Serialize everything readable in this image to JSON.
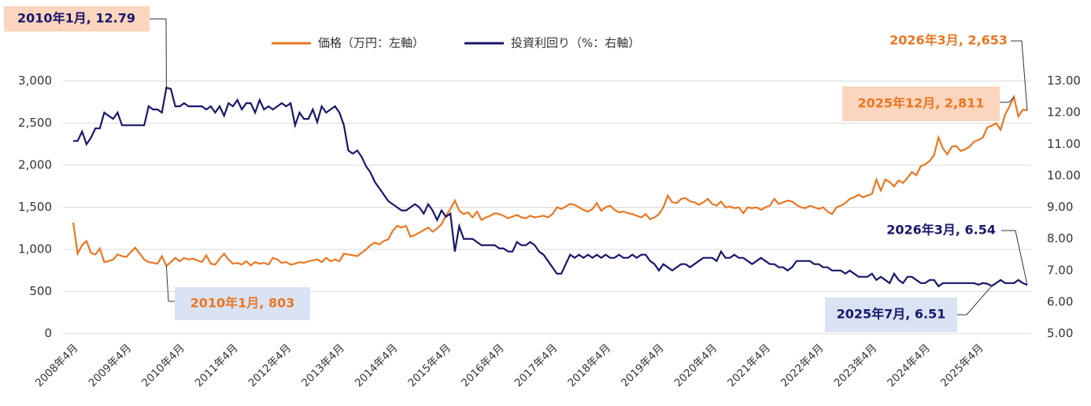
{
  "chart_data": {
    "type": "line",
    "legend": "top",
    "ylim": [
      0,
      3000
    ],
    "yticks": [
      0,
      500,
      {
        "value": 1000,
        "label": "1,000"
      },
      {
        "value": 1500,
        "label": "1,500"
      },
      {
        "value": 2000,
        "label": "2,000"
      },
      {
        "value": 2500,
        "label": "2,500"
      },
      {
        "value": 3000,
        "label": "3,000"
      }
    ],
    "y2lim": [
      5,
      13
    ],
    "y2ticks": [
      {
        "value": 5,
        "label": "5.00"
      },
      {
        "value": 6,
        "label": "6.00"
      },
      {
        "value": 7,
        "label": "7.00"
      },
      {
        "value": 8,
        "label": "8.00"
      },
      {
        "value": 9,
        "label": "9.00"
      },
      {
        "value": 10,
        "label": "10.00"
      },
      {
        "value": 11,
        "label": "11.00"
      },
      {
        "value": 12,
        "label": "12.00"
      },
      {
        "value": 13,
        "label": "13.00"
      }
    ],
    "grid": true,
    "categories": [
      "2008年4月",
      null,
      null,
      null,
      null,
      null,
      null,
      null,
      null,
      null,
      null,
      null,
      "2009年4月",
      null,
      null,
      null,
      null,
      null,
      null,
      null,
      null,
      null,
      null,
      null,
      "2010年4月",
      null,
      null,
      null,
      null,
      null,
      null,
      null,
      null,
      null,
      null,
      null,
      "2011年4月",
      null,
      null,
      null,
      null,
      null,
      null,
      null,
      null,
      null,
      null,
      null,
      "2012年4月",
      null,
      null,
      null,
      null,
      null,
      null,
      null,
      null,
      null,
      null,
      null,
      "2013年4月",
      null,
      null,
      null,
      null,
      null,
      null,
      null,
      null,
      null,
      null,
      null,
      "2014年4月",
      null,
      null,
      null,
      null,
      null,
      null,
      null,
      null,
      null,
      null,
      null,
      "2015年4月",
      null,
      null,
      null,
      null,
      null,
      null,
      null,
      null,
      null,
      null,
      null,
      "2016年4月",
      null,
      null,
      null,
      null,
      null,
      null,
      null,
      null,
      null,
      null,
      null,
      "2017年4月",
      null,
      null,
      null,
      null,
      null,
      null,
      null,
      null,
      null,
      null,
      null,
      "2018年4月",
      null,
      null,
      null,
      null,
      null,
      null,
      null,
      null,
      null,
      null,
      null,
      "2019年4月",
      null,
      null,
      null,
      null,
      null,
      null,
      null,
      null,
      null,
      null,
      null,
      "2020年4月",
      null,
      null,
      null,
      null,
      null,
      null,
      null,
      null,
      null,
      null,
      null,
      "2021年4月",
      null,
      null,
      null,
      null,
      null,
      null,
      null,
      null,
      null,
      null,
      null,
      "2022年4月",
      null,
      null,
      null,
      null,
      null,
      null,
      null,
      null,
      null,
      null,
      null,
      "2023年4月",
      null,
      null,
      null,
      null,
      null,
      null,
      null,
      null,
      null,
      null,
      null,
      "2024年4月",
      null,
      null,
      null,
      null,
      null,
      null,
      null,
      null,
      null,
      null,
      null,
      "2025年4月",
      null,
      null,
      null,
      null,
      null,
      null,
      null,
      null,
      null,
      null,
      null
    ],
    "series": [
      {
        "name": "価格（万円：左軸）",
        "color": "#e87722",
        "axis": "y",
        "values": [
          1320,
          950,
          1050,
          1100,
          960,
          940,
          1010,
          850,
          860,
          880,
          940,
          920,
          910,
          970,
          1020,
          950,
          880,
          850,
          840,
          830,
          920,
          803,
          850,
          900,
          860,
          900,
          880,
          890,
          870,
          850,
          930,
          830,
          820,
          890,
          950,
          880,
          830,
          840,
          820,
          860,
          810,
          850,
          830,
          840,
          820,
          900,
          880,
          840,
          850,
          820,
          830,
          850,
          840,
          860,
          870,
          880,
          850,
          900,
          860,
          880,
          860,
          950,
          940,
          930,
          920,
          960,
          1000,
          1050,
          1080,
          1060,
          1100,
          1120,
          1220,
          1280,
          1260,
          1280,
          1150,
          1170,
          1200,
          1230,
          1260,
          1210,
          1250,
          1300,
          1400,
          1480,
          1580,
          1460,
          1420,
          1440,
          1380,
          1450,
          1350,
          1380,
          1400,
          1430,
          1420,
          1400,
          1370,
          1390,
          1410,
          1380,
          1370,
          1400,
          1380,
          1390,
          1400,
          1380,
          1420,
          1500,
          1480,
          1510,
          1540,
          1530,
          1500,
          1470,
          1450,
          1480,
          1550,
          1460,
          1500,
          1520,
          1470,
          1440,
          1450,
          1430,
          1420,
          1400,
          1380,
          1420,
          1360,
          1380,
          1420,
          1500,
          1640,
          1560,
          1550,
          1600,
          1610,
          1570,
          1560,
          1530,
          1560,
          1600,
          1540,
          1520,
          1570,
          1500,
          1510,
          1490,
          1500,
          1430,
          1500,
          1490,
          1500,
          1470,
          1500,
          1520,
          1600,
          1540,
          1560,
          1580,
          1570,
          1530,
          1500,
          1490,
          1520,
          1500,
          1480,
          1500,
          1450,
          1420,
          1500,
          1520,
          1550,
          1600,
          1620,
          1650,
          1620,
          1640,
          1660,
          1830,
          1700,
          1830,
          1800,
          1750,
          1820,
          1790,
          1850,
          1920,
          1880,
          1990,
          2010,
          2050,
          2120,
          2330,
          2200,
          2130,
          2220,
          2230,
          2170,
          2190,
          2220,
          2280,
          2300,
          2330,
          2450,
          2470,
          2500,
          2420,
          2600,
          2700,
          2811,
          2580,
          2660,
          2653
        ]
      },
      {
        "name": "投資利回り（%：右軸）",
        "color": "#17176b",
        "axis": "y2",
        "values": [
          11.1,
          11.1,
          11.4,
          11.0,
          11.2,
          11.5,
          11.5,
          12.0,
          11.9,
          11.8,
          12.0,
          11.6,
          11.6,
          11.6,
          11.6,
          11.6,
          11.6,
          12.2,
          12.1,
          12.1,
          12.0,
          12.79,
          12.75,
          12.2,
          12.2,
          12.3,
          12.2,
          12.2,
          12.2,
          12.2,
          12.1,
          12.2,
          12.0,
          12.2,
          11.9,
          12.3,
          12.2,
          12.4,
          12.1,
          12.3,
          12.3,
          12.0,
          12.4,
          12.1,
          12.2,
          12.1,
          12.2,
          12.3,
          12.2,
          12.3,
          11.6,
          12.0,
          11.8,
          11.8,
          12.1,
          11.7,
          12.2,
          12.0,
          12.1,
          12.2,
          12.0,
          11.6,
          10.8,
          10.7,
          10.8,
          10.6,
          10.3,
          10.1,
          9.8,
          9.6,
          9.4,
          9.2,
          9.1,
          9.0,
          8.9,
          8.9,
          9.0,
          9.1,
          9.0,
          8.8,
          9.1,
          8.9,
          8.6,
          8.9,
          8.7,
          8.8,
          7.6,
          8.4,
          8.0,
          8.0,
          8.0,
          7.9,
          7.8,
          7.8,
          7.8,
          7.8,
          7.7,
          7.7,
          7.6,
          7.6,
          7.9,
          7.8,
          7.8,
          7.9,
          7.8,
          7.6,
          7.5,
          7.3,
          7.1,
          6.9,
          6.9,
          7.2,
          7.5,
          7.4,
          7.5,
          7.4,
          7.5,
          7.4,
          7.5,
          7.4,
          7.5,
          7.4,
          7.4,
          7.5,
          7.4,
          7.4,
          7.5,
          7.4,
          7.5,
          7.5,
          7.3,
          7.2,
          7.0,
          7.2,
          7.1,
          7.0,
          7.1,
          7.2,
          7.2,
          7.1,
          7.2,
          7.3,
          7.4,
          7.4,
          7.4,
          7.3,
          7.6,
          7.4,
          7.4,
          7.5,
          7.4,
          7.4,
          7.3,
          7.2,
          7.3,
          7.4,
          7.3,
          7.2,
          7.2,
          7.1,
          7.1,
          7.0,
          7.1,
          7.3,
          7.3,
          7.3,
          7.3,
          7.2,
          7.2,
          7.1,
          7.1,
          7.0,
          7.0,
          7.0,
          6.9,
          7.0,
          6.9,
          6.8,
          6.8,
          6.8,
          6.9,
          6.7,
          6.8,
          6.7,
          6.6,
          6.9,
          6.7,
          6.6,
          6.8,
          6.8,
          6.7,
          6.6,
          6.6,
          6.7,
          6.7,
          6.5,
          6.6,
          6.6,
          6.6,
          6.6,
          6.6,
          6.6,
          6.6,
          6.6,
          6.55,
          6.6,
          6.58,
          6.51,
          6.6,
          6.7,
          6.6,
          6.6,
          6.6,
          6.7,
          6.6,
          6.54
        ]
      }
    ],
    "annotations": [
      "2010年1月, 12.79",
      "2010年1月, 803",
      "2026年3月, 2,653",
      "2025年12月, 2,811",
      "2026年3月, 6.54",
      "2025年7月, 6.51"
    ]
  }
}
